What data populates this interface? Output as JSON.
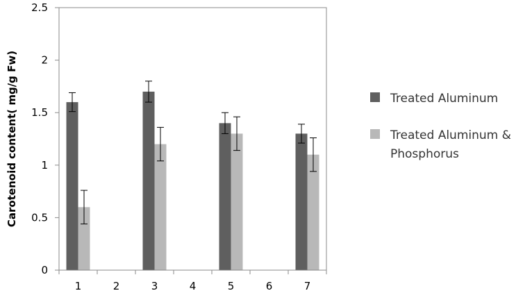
{
  "chart_data": {
    "type": "bar",
    "title": "",
    "xlabel": "",
    "ylabel": "Carotenoid content( mg/g Fw)",
    "categories": [
      "1",
      "2",
      "3",
      "4",
      "5",
      "6",
      "7"
    ],
    "ylim": [
      0,
      2.5
    ],
    "yticks": [
      "0",
      "0.5",
      "1",
      "1.5",
      "2",
      "2.5"
    ],
    "grid": false,
    "legend_position": "right",
    "series": [
      {
        "name": "Treated Aluminum",
        "color": "#5f5f5f",
        "values": [
          1.6,
          null,
          1.7,
          null,
          1.4,
          null,
          1.3
        ],
        "errors": [
          0.09,
          null,
          0.1,
          null,
          0.1,
          null,
          0.09
        ]
      },
      {
        "name": "Treated Aluminum & Phosphorus",
        "legend_lines": [
          "Treated Aluminum &",
          "Phosphorus"
        ],
        "color": "#b8b8b8",
        "values": [
          0.6,
          null,
          1.2,
          null,
          1.3,
          null,
          1.1
        ],
        "errors": [
          0.16,
          null,
          0.16,
          null,
          0.16,
          null,
          0.16
        ]
      }
    ]
  }
}
